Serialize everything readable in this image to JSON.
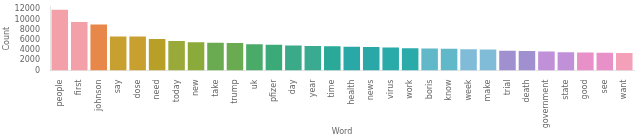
{
  "chart_data": {
    "type": "bar",
    "categories": [
      "people",
      "first",
      "johnson",
      "say",
      "dose",
      "need",
      "today",
      "new",
      "take",
      "trump",
      "uk",
      "pfizer",
      "day",
      "year",
      "time",
      "health",
      "news",
      "virus",
      "work",
      "boris",
      "know",
      "week",
      "make",
      "trial",
      "death",
      "government",
      "state",
      "good",
      "see",
      "want"
    ],
    "values": [
      11900,
      9500,
      9050,
      6650,
      6650,
      6200,
      5800,
      5550,
      5450,
      5400,
      5150,
      5050,
      4900,
      4800,
      4750,
      4650,
      4600,
      4500,
      4350,
      4300,
      4250,
      4150,
      4100,
      3900,
      3850,
      3750,
      3600,
      3550,
      3500,
      3450
    ],
    "colors": [
      "#f4a0a8",
      "#f4a0a8",
      "#e8874a",
      "#c8a030",
      "#c8a030",
      "#b8a028",
      "#9aaa3a",
      "#8aaa3a",
      "#6aaa50",
      "#6aaa50",
      "#4aaa68",
      "#3aaa78",
      "#3aaa88",
      "#3aaa90",
      "#2aa898",
      "#2aa8a8",
      "#2aa8a8",
      "#2aabaa",
      "#2aabaa",
      "#60b8c8",
      "#60b8c8",
      "#80bcd8",
      "#80bcd8",
      "#a090d0",
      "#a090d0",
      "#c090d8",
      "#c090d8",
      "#e890c8",
      "#e890c8",
      "#f4a0b8"
    ],
    "xlabel": "Word",
    "ylabel": "Count",
    "ylim": [
      0,
      12500
    ],
    "yticks": [
      0,
      2000,
      4000,
      6000,
      8000,
      10000,
      12000
    ],
    "grid": false
  }
}
